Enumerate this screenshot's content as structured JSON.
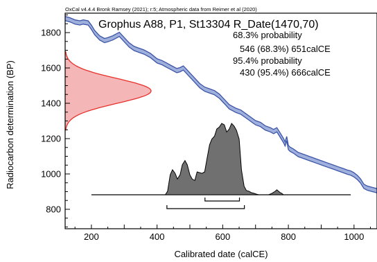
{
  "chart_data": {
    "type": "area",
    "credit": "OxCal v4.4.4 Bronk Ramsey (2021); r:5; Atmospheric data from Reimer et al (2020)",
    "title": "Grophus A88, P1, St13304 R_Date(1470,70)",
    "summary": [
      "68.3% probability",
      "546 (68.3%) 651calCE",
      "95.4% probability",
      "430 (95.4%) 666calCE"
    ],
    "xlabel": "Calibrated date (calCE)",
    "ylabel": "Radiocarbon determination (BP)",
    "xlim": [
      120,
      1070
    ],
    "ylim": [
      690,
      1910
    ],
    "xticks": [
      200,
      400,
      600,
      800,
      1000
    ],
    "yticks": [
      800,
      1000,
      1200,
      1400,
      1600,
      1800
    ],
    "radiocarbon_date": {
      "mean": 1470,
      "sigma": 70
    },
    "calibration_curve": {
      "x": [
        120,
        135,
        150,
        165,
        175,
        190,
        200,
        210,
        225,
        240,
        250,
        265,
        275,
        285,
        300,
        315,
        330,
        345,
        360,
        380,
        400,
        415,
        430,
        445,
        460,
        470,
        480,
        490,
        500,
        515,
        530,
        545,
        560,
        575,
        590,
        600,
        610,
        620,
        630,
        640,
        655,
        670,
        685,
        700,
        715,
        730,
        745,
        755,
        765,
        775,
        785,
        790,
        795,
        800,
        805,
        815,
        830,
        845,
        860,
        875,
        890,
        905,
        920,
        935,
        950,
        965,
        980,
        990,
        1000,
        1010,
        1020,
        1030,
        1040,
        1050,
        1060,
        1070
      ],
      "y": [
        1880,
        1872,
        1860,
        1855,
        1860,
        1855,
        1830,
        1800,
        1770,
        1755,
        1760,
        1770,
        1780,
        1790,
        1760,
        1730,
        1710,
        1700,
        1690,
        1670,
        1640,
        1630,
        1615,
        1600,
        1585,
        1590,
        1600,
        1580,
        1560,
        1530,
        1500,
        1480,
        1470,
        1460,
        1440,
        1420,
        1400,
        1380,
        1370,
        1360,
        1350,
        1330,
        1310,
        1290,
        1280,
        1260,
        1250,
        1240,
        1250,
        1220,
        1190,
        1170,
        1200,
        1150,
        1140,
        1130,
        1110,
        1100,
        1090,
        1080,
        1070,
        1060,
        1050,
        1040,
        1030,
        1020,
        1010,
        1005,
        995,
        980,
        960,
        930,
        920,
        915,
        910,
        905
      ],
      "half_width": 12
    },
    "bp_distribution": {
      "mean": 1470,
      "sigma": 70,
      "color": "#f4b6b6",
      "edge": "#e8302a"
    },
    "calibrated_distribution": {
      "x": [
        425,
        432,
        440,
        447,
        455,
        462,
        470,
        477,
        485,
        492,
        500,
        507,
        515,
        522,
        530,
        537,
        545,
        552,
        560,
        567,
        575,
        582,
        590,
        597,
        605,
        612,
        620,
        627,
        635,
        642,
        650,
        657,
        665,
        672,
        680,
        687,
        695,
        702,
        710,
        740,
        750,
        760,
        765,
        770,
        775,
        780,
        785
      ],
      "p": [
        0,
        0.05,
        0.28,
        0.35,
        0.3,
        0.22,
        0.28,
        0.42,
        0.48,
        0.42,
        0.28,
        0.22,
        0.2,
        0.32,
        0.31,
        0.3,
        0.32,
        0.5,
        0.7,
        0.78,
        0.82,
        0.92,
        0.95,
        1.0,
        0.98,
        0.88,
        0.92,
        1.0,
        0.96,
        0.9,
        0.78,
        0.35,
        0.12,
        0.06,
        0.05,
        0.03,
        0.02,
        0.01,
        0,
        0,
        0.02,
        0.05,
        0.07,
        0.05,
        0.03,
        0.02,
        0
      ],
      "color": "#707070"
    },
    "baseline": {
      "x0": 200,
      "x1": 990
    },
    "ranges_68": [
      [
        546,
        651
      ]
    ],
    "ranges_95": [
      [
        430,
        666
      ]
    ],
    "curve_color": "#3c54a8",
    "curve_fill": "#9fb0dc"
  }
}
